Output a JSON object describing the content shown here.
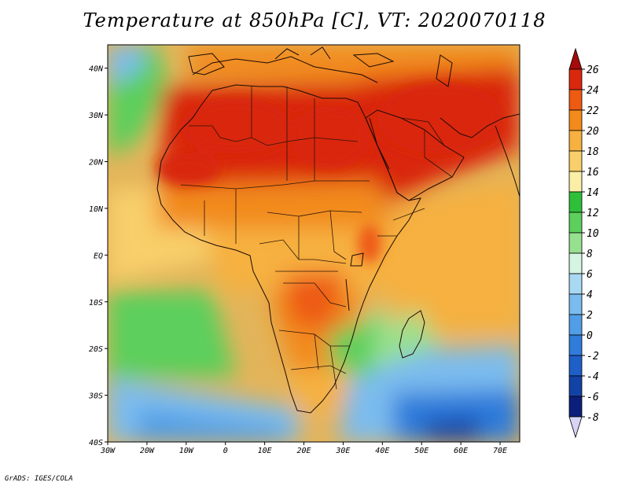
{
  "title": "Temperature at 850hPa [C], VT: 2020070118",
  "credit": "GrADS: IGES/COLA",
  "map": {
    "lon_range": [
      -30,
      75
    ],
    "lat_range": [
      -40,
      45
    ],
    "ocean_color": "#e3b45a",
    "land_hot_color": "#d9280e",
    "coast_color": "#1a0a05",
    "border_color": "#2a1408"
  },
  "axes": {
    "x_ticks": [
      {
        "value": -30,
        "label": "30W"
      },
      {
        "value": -20,
        "label": "20W"
      },
      {
        "value": -10,
        "label": "10W"
      },
      {
        "value": 0,
        "label": "0"
      },
      {
        "value": 10,
        "label": "10E"
      },
      {
        "value": 20,
        "label": "20E"
      },
      {
        "value": 30,
        "label": "30E"
      },
      {
        "value": 40,
        "label": "40E"
      },
      {
        "value": 50,
        "label": "50E"
      },
      {
        "value": 60,
        "label": "60E"
      },
      {
        "value": 70,
        "label": "70E"
      }
    ],
    "y_ticks": [
      {
        "value": 40,
        "label": "40N"
      },
      {
        "value": 30,
        "label": "30N"
      },
      {
        "value": 20,
        "label": "20N"
      },
      {
        "value": 10,
        "label": "10N"
      },
      {
        "value": 0,
        "label": "EQ"
      },
      {
        "value": -10,
        "label": "10S"
      },
      {
        "value": -20,
        "label": "20S"
      },
      {
        "value": -30,
        "label": "30S"
      },
      {
        "value": -40,
        "label": "40S"
      }
    ]
  },
  "colorbar": {
    "levels": [
      "26",
      "24",
      "22",
      "20",
      "18",
      "16",
      "14",
      "12",
      "10",
      "8",
      "6",
      "4",
      "2",
      "0",
      "-2",
      "-4",
      "-6",
      "-8"
    ],
    "colors": [
      "#a50b0b",
      "#d9280e",
      "#ee5a12",
      "#f28a1c",
      "#f6b140",
      "#f8cf6a",
      "#fbeea6",
      "#2fbf3a",
      "#5ccf5c",
      "#97e08f",
      "#d6f4e2",
      "#a9d8f2",
      "#7bbcee",
      "#519ee6",
      "#2f7cdb",
      "#1e5fc8",
      "#1342a6",
      "#0b1f7a",
      "#d8d4f6"
    ]
  }
}
